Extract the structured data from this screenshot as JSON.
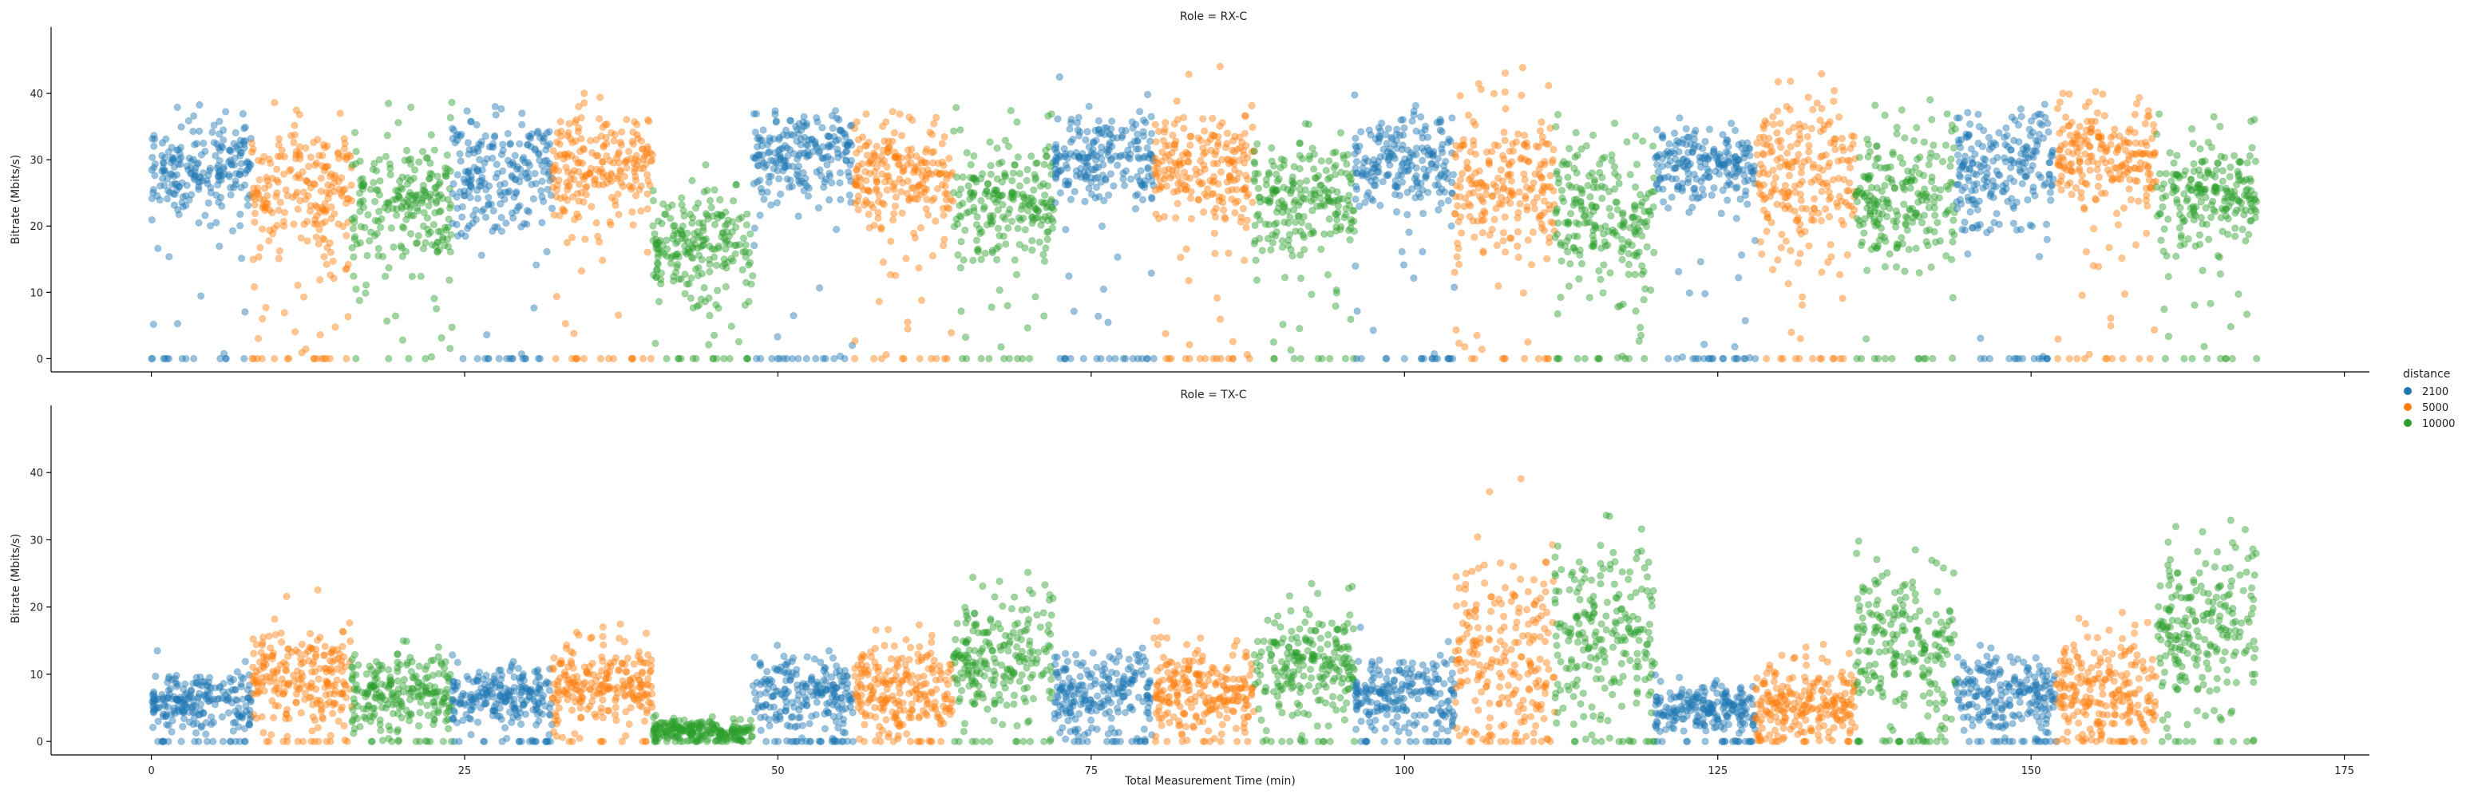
{
  "figure": {
    "xlabel": "Total Measurement Time (min)",
    "ylabel": "Bitrate (Mbits/s)",
    "xticks": [
      0,
      25,
      50,
      75,
      100,
      125,
      150,
      175
    ],
    "yticks": [
      0,
      10,
      20,
      30,
      40
    ],
    "legend": {
      "title": "distance",
      "entries": [
        {
          "label": "2100",
          "color": "#1f77b4"
        },
        {
          "label": "5000",
          "color": "#ff7f0e"
        },
        {
          "label": "10000",
          "color": "#2ca02c"
        }
      ],
      "placement": "right-center"
    }
  },
  "chart_data": [
    {
      "type": "scatter",
      "title": "Role = RX-C",
      "xlabel": "",
      "ylabel": "Bitrate (Mbits/s)",
      "xlim": [
        -8,
        177
      ],
      "ylim": [
        -2,
        50
      ],
      "grid": false,
      "segments": [
        {
          "distance": "2100",
          "start": 0,
          "end": 8,
          "mean": 29,
          "spread": 5
        },
        {
          "distance": "5000",
          "start": 8,
          "end": 16,
          "mean": 25,
          "spread": 7
        },
        {
          "distance": "10000",
          "start": 16,
          "end": 24,
          "mean": 23,
          "spread": 8
        },
        {
          "distance": "2100",
          "start": 24,
          "end": 32,
          "mean": 28,
          "spread": 6
        },
        {
          "distance": "5000",
          "start": 32,
          "end": 40,
          "mean": 29,
          "spread": 6
        },
        {
          "distance": "10000",
          "start": 40,
          "end": 48,
          "mean": 17,
          "spread": 6
        },
        {
          "distance": "2100",
          "start": 48,
          "end": 56,
          "mean": 30,
          "spread": 5
        },
        {
          "distance": "5000",
          "start": 56,
          "end": 64,
          "mean": 28,
          "spread": 6
        },
        {
          "distance": "10000",
          "start": 64,
          "end": 72,
          "mean": 24,
          "spread": 7
        },
        {
          "distance": "2100",
          "start": 72,
          "end": 80,
          "mean": 30,
          "spread": 5
        },
        {
          "distance": "5000",
          "start": 80,
          "end": 88,
          "mean": 29,
          "spread": 6
        },
        {
          "distance": "10000",
          "start": 88,
          "end": 96,
          "mean": 25,
          "spread": 6
        },
        {
          "distance": "2100",
          "start": 96,
          "end": 104,
          "mean": 30,
          "spread": 5
        },
        {
          "distance": "5000",
          "start": 104,
          "end": 112,
          "mean": 27,
          "spread": 8
        },
        {
          "distance": "10000",
          "start": 112,
          "end": 120,
          "mean": 21,
          "spread": 8
        },
        {
          "distance": "2100",
          "start": 120,
          "end": 128,
          "mean": 29,
          "spread": 4
        },
        {
          "distance": "5000",
          "start": 128,
          "end": 136,
          "mean": 28,
          "spread": 8
        },
        {
          "distance": "10000",
          "start": 136,
          "end": 144,
          "mean": 24,
          "spread": 8
        },
        {
          "distance": "2100",
          "start": 144,
          "end": 152,
          "mean": 28,
          "spread": 6
        },
        {
          "distance": "5000",
          "start": 152,
          "end": 160,
          "mean": 31,
          "spread": 6
        },
        {
          "distance": "10000",
          "start": 160,
          "end": 168,
          "mean": 25,
          "spread": 6
        }
      ]
    },
    {
      "type": "scatter",
      "title": "Role = TX-C",
      "xlabel": "Total Measurement Time (min)",
      "ylabel": "Bitrate (Mbits/s)",
      "xlim": [
        -8,
        177
      ],
      "ylim": [
        -2,
        50
      ],
      "grid": false,
      "segments": [
        {
          "distance": "2100",
          "start": 0,
          "end": 8,
          "mean": 6,
          "spread": 3
        },
        {
          "distance": "5000",
          "start": 8,
          "end": 16,
          "mean": 10,
          "spread": 5
        },
        {
          "distance": "10000",
          "start": 16,
          "end": 24,
          "mean": 8,
          "spread": 4
        },
        {
          "distance": "2100",
          "start": 24,
          "end": 32,
          "mean": 7,
          "spread": 3
        },
        {
          "distance": "5000",
          "start": 32,
          "end": 40,
          "mean": 9,
          "spread": 4
        },
        {
          "distance": "10000",
          "start": 40,
          "end": 48,
          "mean": 1.5,
          "spread": 1.2
        },
        {
          "distance": "2100",
          "start": 48,
          "end": 56,
          "mean": 7,
          "spread": 4
        },
        {
          "distance": "5000",
          "start": 56,
          "end": 64,
          "mean": 8,
          "spread": 5
        },
        {
          "distance": "10000",
          "start": 64,
          "end": 72,
          "mean": 12,
          "spread": 7
        },
        {
          "distance": "2100",
          "start": 72,
          "end": 80,
          "mean": 7,
          "spread": 4
        },
        {
          "distance": "5000",
          "start": 80,
          "end": 88,
          "mean": 8,
          "spread": 5
        },
        {
          "distance": "10000",
          "start": 88,
          "end": 96,
          "mean": 12,
          "spread": 6
        },
        {
          "distance": "2100",
          "start": 96,
          "end": 104,
          "mean": 7,
          "spread": 4
        },
        {
          "distance": "5000",
          "start": 104,
          "end": 112,
          "mean": 14,
          "spread": 10
        },
        {
          "distance": "10000",
          "start": 112,
          "end": 120,
          "mean": 18,
          "spread": 9
        },
        {
          "distance": "2100",
          "start": 120,
          "end": 128,
          "mean": 5,
          "spread": 2.5
        },
        {
          "distance": "5000",
          "start": 128,
          "end": 136,
          "mean": 6,
          "spread": 4
        },
        {
          "distance": "10000",
          "start": 136,
          "end": 144,
          "mean": 14,
          "spread": 8
        },
        {
          "distance": "2100",
          "start": 144,
          "end": 152,
          "mean": 7,
          "spread": 4
        },
        {
          "distance": "5000",
          "start": 152,
          "end": 160,
          "mean": 8,
          "spread": 6
        },
        {
          "distance": "10000",
          "start": 160,
          "end": 168,
          "mean": 16,
          "spread": 9
        }
      ]
    }
  ]
}
